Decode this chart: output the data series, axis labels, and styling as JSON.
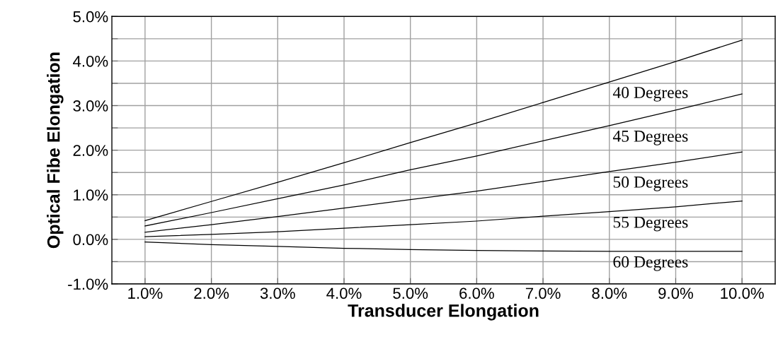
{
  "chart_data": {
    "type": "line",
    "xlabel": "Transducer Elongation",
    "ylabel": "Optical Fibe Elongation",
    "x": [
      1,
      2,
      3,
      4,
      5,
      6,
      7,
      8,
      9,
      10
    ],
    "series": [
      {
        "name": "40 Degrees",
        "color": "#000000",
        "values": [
          0.42,
          0.85,
          1.28,
          1.72,
          2.17,
          2.61,
          3.07,
          3.53,
          3.99,
          4.47
        ]
      },
      {
        "name": "45 Degrees",
        "color": "#000000",
        "values": [
          0.3,
          0.6,
          0.91,
          1.22,
          1.56,
          1.87,
          2.21,
          2.55,
          2.9,
          3.26
        ]
      },
      {
        "name": "50 Degrees",
        "color": "#000000",
        "values": [
          0.16,
          0.33,
          0.51,
          0.7,
          0.89,
          1.08,
          1.3,
          1.52,
          1.73,
          1.96
        ]
      },
      {
        "name": "55 Degrees",
        "color": "#000000",
        "values": [
          0.06,
          0.11,
          0.17,
          0.25,
          0.33,
          0.41,
          0.52,
          0.62,
          0.73,
          0.86
        ]
      },
      {
        "name": "60 Degrees",
        "color": "#000000",
        "values": [
          -0.06,
          -0.12,
          -0.16,
          -0.2,
          -0.23,
          -0.25,
          -0.26,
          -0.27,
          -0.27,
          -0.27
        ]
      }
    ],
    "xlim": [
      0.5,
      10.5
    ],
    "xticks": [
      {
        "value": 1,
        "label": "1.0%"
      },
      {
        "value": 2,
        "label": "2.0%"
      },
      {
        "value": 3,
        "label": "3.0%"
      },
      {
        "value": 4,
        "label": "4.0%"
      },
      {
        "value": 5,
        "label": "5.0%"
      },
      {
        "value": 6,
        "label": "6.0%"
      },
      {
        "value": 7,
        "label": "7.0%"
      },
      {
        "value": 8,
        "label": "8.0%"
      },
      {
        "value": 9,
        "label": "9.0%"
      },
      {
        "value": 10,
        "label": "10.0%"
      }
    ],
    "ylim": [
      -1,
      5
    ],
    "yticks": [
      {
        "value": -1,
        "label": "-1.0%"
      },
      {
        "value": -0.5,
        "label": null
      },
      {
        "value": 0,
        "label": "0.0%"
      },
      {
        "value": 0.5,
        "label": null
      },
      {
        "value": 1,
        "label": "1.0%"
      },
      {
        "value": 1.5,
        "label": null
      },
      {
        "value": 2,
        "label": "2.0%"
      },
      {
        "value": 2.5,
        "label": null
      },
      {
        "value": 3,
        "label": "3.0%"
      },
      {
        "value": 3.5,
        "label": null
      },
      {
        "value": 4,
        "label": "4.0%"
      },
      {
        "value": 4.5,
        "label": null
      },
      {
        "value": 5,
        "label": "5.0%"
      }
    ],
    "grid": true,
    "legend": false,
    "marker": "none",
    "line_style": "solid"
  }
}
